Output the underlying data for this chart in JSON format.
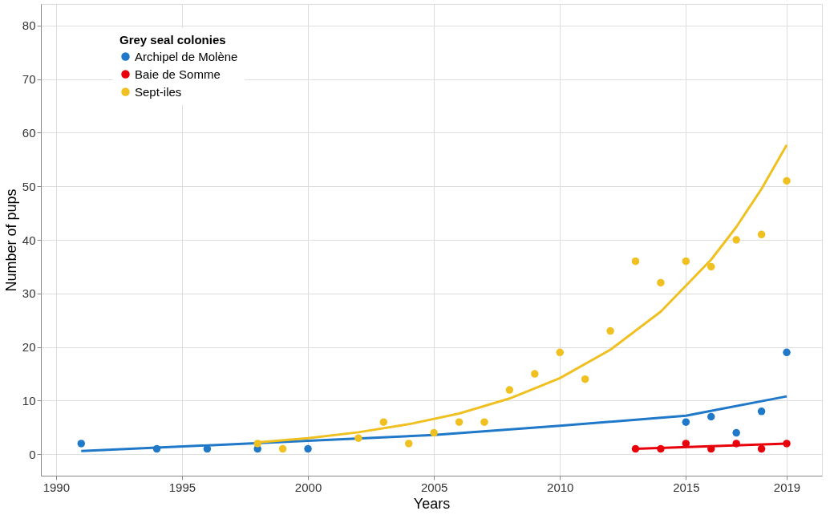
{
  "chart_data": {
    "type": "scatter",
    "xlabel": "Years",
    "ylabel": "Number of pups",
    "legend_title": "Grey seal colonies",
    "legend": "top left",
    "grid": true,
    "marker": "circle",
    "xlim": [
      1989.4,
      2020.4
    ],
    "xticks": [
      1990,
      1995,
      2000,
      2005,
      2010,
      2015,
      2019
    ],
    "ylim": [
      -4,
      84
    ],
    "yticks": [
      0,
      10,
      20,
      30,
      40,
      50,
      60,
      70,
      80
    ],
    "series": [
      {
        "name": "Archipel de Molène",
        "color": "#1f78c8",
        "x": [
          1991,
          1994,
          1996,
          1998,
          2000,
          2015,
          2016,
          2017,
          2018,
          2019
        ],
        "values": [
          2,
          1,
          1,
          1,
          1,
          6,
          7,
          4,
          8,
          19
        ]
      },
      {
        "name": "Baie de Somme",
        "color": "#e8000b",
        "x": [
          2013,
          2014,
          2015,
          2016,
          2017,
          2018,
          2019
        ],
        "values": [
          1,
          1,
          2,
          1,
          2,
          1,
          2
        ]
      },
      {
        "name": "Sept-iles",
        "color": "#f0c020",
        "x": [
          1998,
          1999,
          2002,
          2003,
          2004,
          2005,
          2006,
          2007,
          2008,
          2009,
          2010,
          2011,
          2012,
          2013,
          2014,
          2015,
          2016,
          2017,
          2018,
          2019
        ],
        "values": [
          2,
          1,
          3,
          6,
          2,
          4,
          6,
          6,
          12,
          15,
          19,
          14,
          23,
          36,
          32,
          36,
          35,
          40,
          41,
          51
        ]
      },
      {
        "color": "#1f78c8",
        "type": "line",
        "marker": "none",
        "x": [
          1991,
          2000,
          2005,
          2010,
          2015,
          2019
        ],
        "values": [
          0.6,
          2.5,
          3.6,
          5.3,
          7.2,
          10.8
        ]
      },
      {
        "color": "#e8000b",
        "type": "line",
        "marker": "none",
        "x": [
          2013,
          2019
        ],
        "values": [
          1.0,
          2.0
        ]
      },
      {
        "color": "#f0c020",
        "type": "line",
        "marker": "none",
        "x": [
          1998,
          2000,
          2002,
          2004,
          2006,
          2008,
          2010,
          2012,
          2014,
          2016,
          2017,
          2018,
          2019
        ],
        "values": [
          2.2,
          3.0,
          4.1,
          5.6,
          7.6,
          10.4,
          14.2,
          19.5,
          26.6,
          36.3,
          42.4,
          49.5,
          57.7
        ]
      }
    ]
  }
}
